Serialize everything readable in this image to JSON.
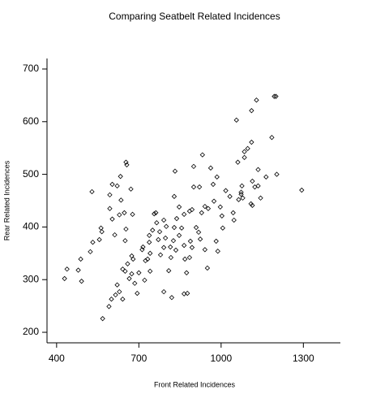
{
  "chart_data": {
    "type": "scatter",
    "title": "Comparing Seatbelt Related Incidences",
    "xlabel": "Front Related Incidences",
    "ylabel": "Rear Related Incidences",
    "color": "#000000",
    "xlim": [
      365,
      1435
    ],
    "ylim": [
      180,
      720
    ],
    "xticks": [
      400,
      700,
      1000,
      1300
    ],
    "yticks": [
      200,
      300,
      400,
      500,
      600,
      700
    ],
    "x": [
      429,
      438,
      479,
      491,
      488,
      523,
      532,
      556,
      562,
      565,
      529,
      594,
      603,
      612,
      594,
      603,
      621,
      633,
      653,
      656,
      635,
      647,
      653,
      629,
      671,
      677,
      650,
      568,
      591,
      600,
      621,
      615,
      629,
      641,
      650,
      641,
      659,
      665,
      674,
      679,
      674,
      685,
      694,
      700,
      712,
      715,
      721,
      724,
      732,
      741,
      741,
      738,
      738,
      750,
      756,
      765,
      762,
      771,
      776,
      779,
      791,
      797,
      791,
      800,
      791,
      820,
      809,
      817,
      815,
      826,
      835,
      829,
      838,
      829,
      832,
      847,
      847,
      856,
      865,
      865,
      868,
      874,
      865,
      877,
      885,
      888,
      894,
      885,
      894,
      900,
      900,
      921,
      909,
      918,
      924,
      932,
      929,
      941,
      953,
      941,
      950,
      962,
      971,
      974,
      982,
      988,
      985,
      997,
      1003,
      1006,
      1017,
      1032,
      1047,
      1044,
      1064,
      1061,
      1056,
      1073,
      1076,
      1073,
      1079,
      1085,
      1097,
      1111,
      1109,
      1114,
      1114,
      1123,
      1129,
      1111,
      1144,
      1135,
      1164,
      1194,
      1200,
      1185,
      1203,
      1294,
      1135,
      1085
    ],
    "values": [
      302,
      320,
      318,
      297,
      339,
      353,
      371,
      376,
      398,
      391,
      467,
      435,
      415,
      385,
      461,
      481,
      478,
      496,
      523,
      518,
      451,
      427,
      396,
      423,
      472,
      424,
      374,
      226,
      249,
      263,
      290,
      271,
      277,
      263,
      316,
      320,
      330,
      302,
      345,
      339,
      311,
      293,
      274,
      313,
      357,
      362,
      299,
      336,
      339,
      316,
      350,
      371,
      384,
      394,
      425,
      408,
      427,
      376,
      391,
      347,
      361,
      379,
      413,
      401,
      277,
      266,
      317,
      342,
      362,
      374,
      356,
      399,
      416,
      458,
      506,
      438,
      384,
      398,
      424,
      365,
      339,
      313,
      273,
      274,
      342,
      373,
      361,
      430,
      433,
      476,
      515,
      476,
      399,
      390,
      377,
      537,
      427,
      439,
      435,
      357,
      322,
      512,
      481,
      449,
      373,
      354,
      495,
      438,
      421,
      398,
      469,
      458,
      413,
      427,
      452,
      523,
      603,
      462,
      478,
      466,
      455,
      532,
      549,
      561,
      444,
      441,
      487,
      476,
      641,
      621,
      455,
      478,
      495,
      648,
      648,
      570,
      500,
      470,
      509,
      543
    ]
  }
}
